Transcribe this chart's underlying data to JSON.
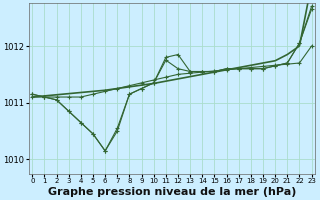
{
  "background_color": "#cceeff",
  "grid_color": "#aaddcc",
  "line_color": "#336633",
  "xlabel": "Graphe pression niveau de la mer (hPa)",
  "xlabel_fontsize": 8,
  "ylim": [
    1009.75,
    1012.75
  ],
  "xlim": [
    -0.3,
    23.3
  ],
  "yticks": [
    1010,
    1011,
    1012
  ],
  "xticks": [
    0,
    1,
    2,
    3,
    4,
    5,
    6,
    7,
    8,
    9,
    10,
    11,
    12,
    13,
    14,
    15,
    16,
    17,
    18,
    19,
    20,
    21,
    22,
    23
  ],
  "series": [
    {
      "y": [
        1011.1,
        1011.12,
        1011.14,
        1011.16,
        1011.18,
        1011.2,
        1011.22,
        1011.25,
        1011.28,
        1011.31,
        1011.34,
        1011.38,
        1011.42,
        1011.46,
        1011.5,
        1011.54,
        1011.58,
        1011.62,
        1011.66,
        1011.7,
        1011.74,
        1011.85,
        1012.0,
        1013.1
      ],
      "marker": null,
      "lw": 1.2
    },
    {
      "y": [
        1011.15,
        1011.1,
        1011.05,
        1010.85,
        1010.65,
        1010.45,
        1010.15,
        1010.5,
        1011.15,
        1011.25,
        1011.35,
        1011.75,
        1011.6,
        1011.55,
        1011.55,
        1011.55,
        1011.6,
        1011.6,
        1011.6,
        1011.6,
        1011.65,
        1011.7,
        1012.05,
        1012.7
      ],
      "marker": "+",
      "lw": 0.8
    },
    {
      "y": [
        1011.15,
        1011.1,
        1011.05,
        1010.85,
        1010.65,
        1010.45,
        1010.15,
        1010.55,
        1011.15,
        1011.25,
        1011.35,
        1011.8,
        1011.85,
        1011.55,
        1011.55,
        1011.55,
        1011.6,
        1011.6,
        1011.6,
        1011.6,
        1011.65,
        1011.7,
        1012.05,
        1012.65
      ],
      "marker": "+",
      "lw": 0.8
    },
    {
      "y": [
        1011.1,
        1011.1,
        1011.1,
        1011.1,
        1011.1,
        1011.15,
        1011.2,
        1011.25,
        1011.3,
        1011.35,
        1011.4,
        1011.45,
        1011.5,
        1011.52,
        1011.54,
        1011.56,
        1011.58,
        1011.6,
        1011.62,
        1011.64,
        1011.66,
        1011.68,
        1011.7,
        1012.0
      ],
      "marker": "+",
      "lw": 0.8
    }
  ]
}
